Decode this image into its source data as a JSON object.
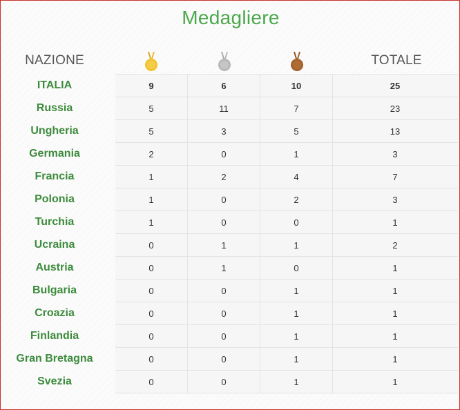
{
  "title": "Medagliere",
  "headers": {
    "nation": "NAZIONE",
    "total": "TOTALE"
  },
  "icons": {
    "gold": "gold-medal-icon",
    "silver": "silver-medal-icon",
    "bronze": "bronze-medal-icon"
  },
  "colors": {
    "accent": "#4aa84a",
    "country": "#3d8b3d",
    "gold": "#f0c330",
    "silver": "#b8b8b8",
    "bronze": "#a4622c",
    "border": "#c9302c"
  },
  "rows": [
    {
      "country": "ITALIA",
      "gold": "9",
      "silver": "6",
      "bronze": "10",
      "total": "25"
    },
    {
      "country": "Russia",
      "gold": "5",
      "silver": "11",
      "bronze": "7",
      "total": "23"
    },
    {
      "country": "Ungheria",
      "gold": "5",
      "silver": "3",
      "bronze": "5",
      "total": "13"
    },
    {
      "country": "Germania",
      "gold": "2",
      "silver": "0",
      "bronze": "1",
      "total": "3"
    },
    {
      "country": "Francia",
      "gold": "1",
      "silver": "2",
      "bronze": "4",
      "total": "7"
    },
    {
      "country": "Polonia",
      "gold": "1",
      "silver": "0",
      "bronze": "2",
      "total": "3"
    },
    {
      "country": "Turchia",
      "gold": "1",
      "silver": "0",
      "bronze": "0",
      "total": "1"
    },
    {
      "country": "Ucraina",
      "gold": "0",
      "silver": "1",
      "bronze": "1",
      "total": "2"
    },
    {
      "country": "Austria",
      "gold": "0",
      "silver": "1",
      "bronze": "0",
      "total": "1"
    },
    {
      "country": "Bulgaria",
      "gold": "0",
      "silver": "0",
      "bronze": "1",
      "total": "1"
    },
    {
      "country": "Croazia",
      "gold": "0",
      "silver": "0",
      "bronze": "1",
      "total": "1"
    },
    {
      "country": "Finlandia",
      "gold": "0",
      "silver": "0",
      "bronze": "1",
      "total": "1"
    },
    {
      "country": "Gran Bretagna",
      "gold": "0",
      "silver": "0",
      "bronze": "1",
      "total": "1"
    },
    {
      "country": "Svezia",
      "gold": "0",
      "silver": "0",
      "bronze": "1",
      "total": "1"
    }
  ]
}
